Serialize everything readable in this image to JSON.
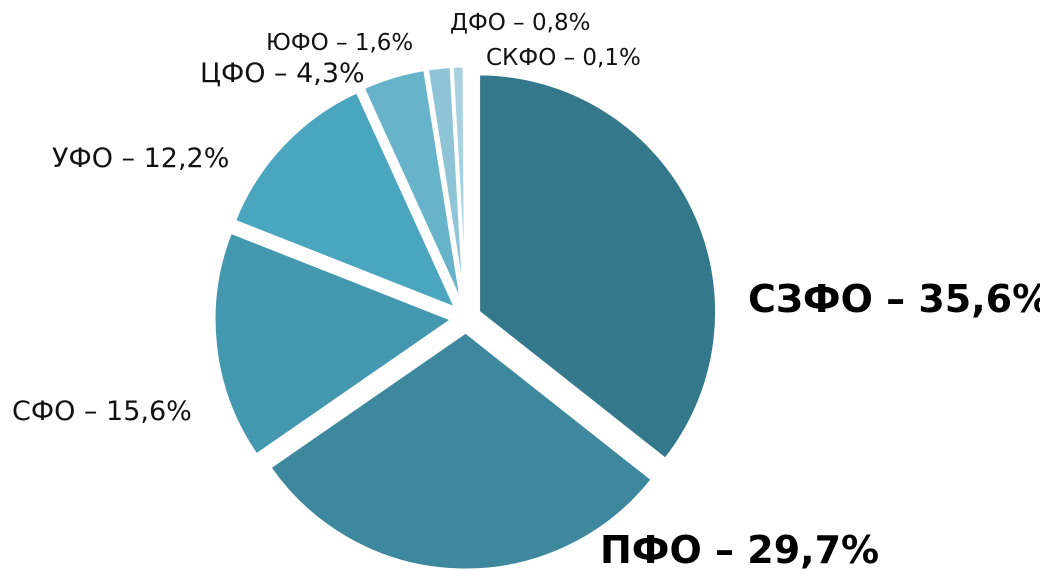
{
  "chart_data": {
    "type": "pie",
    "title": "",
    "slices": [
      {
        "label": "СЗФО – 35,6%",
        "value": 35.6,
        "color": "#34788b",
        "bold": true
      },
      {
        "label": "ПФО – 29,7%",
        "value": 29.7,
        "color": "#3e889e",
        "bold": true
      },
      {
        "label": "СФО – 15,6%",
        "value": 15.6,
        "color": "#4398af",
        "bold": false
      },
      {
        "label": "УФО – 12,2%",
        "value": 12.2,
        "color": "#4aa6bf",
        "bold": false
      },
      {
        "label": "ЦФО – 4,3%",
        "value": 4.3,
        "color": "#66b3ca",
        "bold": false
      },
      {
        "label": "ЮФО – 1,6%",
        "value": 1.6,
        "color": "#8ec4d6",
        "bold": false
      },
      {
        "label": "ДФО – 0,8%",
        "value": 0.8,
        "color": "#a9d2e0",
        "bold": false
      },
      {
        "label": "СКФО – 0,1%",
        "value": 0.1,
        "color": "#c3e0ea",
        "bold": false
      }
    ]
  }
}
